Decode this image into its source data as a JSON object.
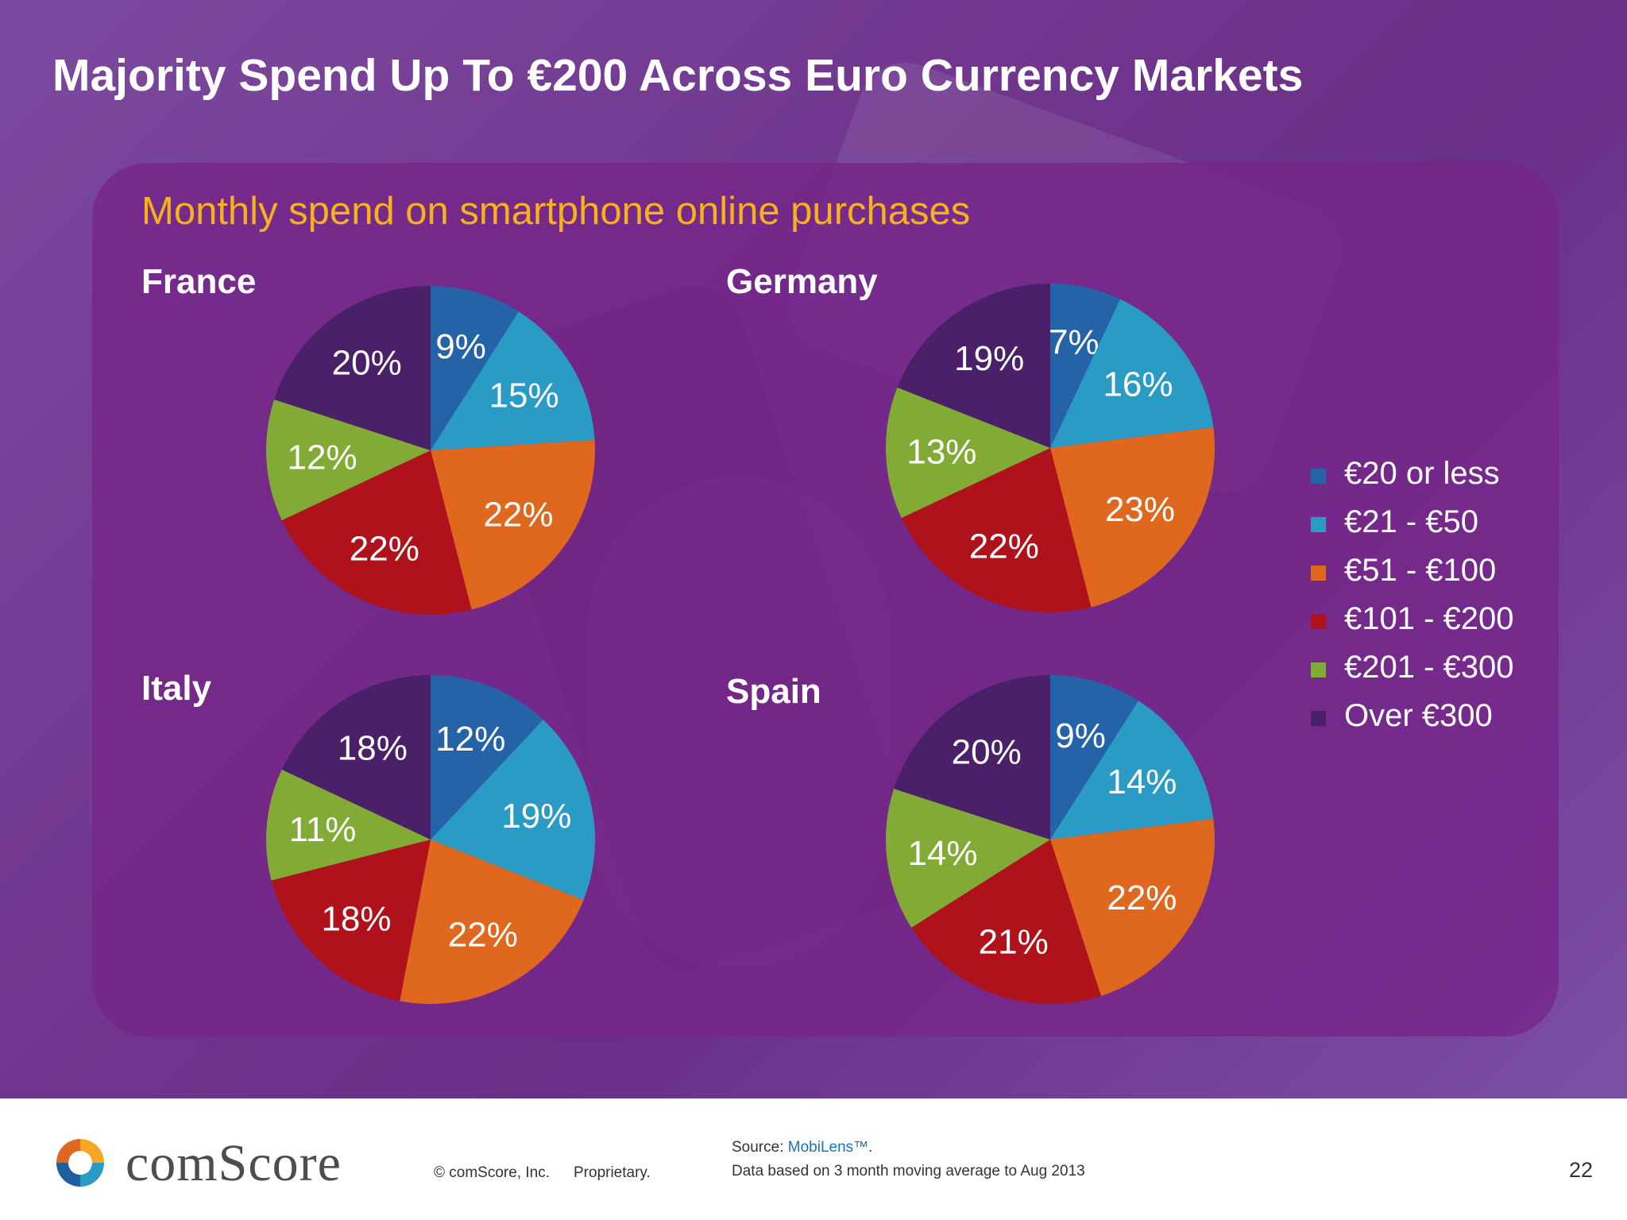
{
  "slide": {
    "title": "Majority Spend Up To €200 Across Euro Currency Markets",
    "subtitle": "Monthly spend on smartphone online purchases",
    "page_number": "22"
  },
  "colors": {
    "€20 or less": "#2563a8",
    "€21 - €50": "#2a9bc4",
    "€51 - €100": "#e0671e",
    "€101 - €200": "#b0121b",
    "€201 - €300": "#82ab35",
    "Over €300": "#4a2169",
    "subtitle": "#f6b21a"
  },
  "legend": [
    {
      "label": "€20 or less",
      "color": "#2563a8"
    },
    {
      "label": "€21 - €50",
      "color": "#2a9bc4"
    },
    {
      "label": "€51 - €100",
      "color": "#e0671e"
    },
    {
      "label": "€101 - €200",
      "color": "#b0121b"
    },
    {
      "label": "€201 - €300",
      "color": "#82ab35"
    },
    {
      "label": "Over €300",
      "color": "#4a2169"
    }
  ],
  "chart_data": [
    {
      "type": "pie",
      "title": "France",
      "categories": [
        "€20 or less",
        "€21 - €50",
        "€51 - €100",
        "€101 - €200",
        "€201 - €300",
        "Over €300"
      ],
      "values": [
        9,
        15,
        22,
        22,
        12,
        20
      ],
      "labels": [
        "9%",
        "15%",
        "22%",
        "22%",
        "12%",
        "20%"
      ]
    },
    {
      "type": "pie",
      "title": "Germany",
      "categories": [
        "€20 or less",
        "€21 - €50",
        "€51 - €100",
        "€101 - €200",
        "€201 - €300",
        "Over €300"
      ],
      "values": [
        7,
        16,
        23,
        22,
        13,
        19
      ],
      "labels": [
        "7%",
        "16%",
        "23%",
        "22%",
        "13%",
        "19%"
      ]
    },
    {
      "type": "pie",
      "title": "Italy",
      "categories": [
        "€20 or less",
        "€21 - €50",
        "€51 - €100",
        "€101 - €200",
        "€201 - €300",
        "Over €300"
      ],
      "values": [
        12,
        19,
        22,
        18,
        11,
        18
      ],
      "labels": [
        "12%",
        "19%",
        "22%",
        "18%",
        "11%",
        "18%"
      ]
    },
    {
      "type": "pie",
      "title": "Spain",
      "categories": [
        "€20 or less",
        "€21 - €50",
        "€51 - €100",
        "€101 - €200",
        "€201 - €300",
        "Over €300"
      ],
      "values": [
        9,
        14,
        22,
        21,
        14,
        20
      ],
      "labels": [
        "9%",
        "14%",
        "22%",
        "21%",
        "14%",
        "20%"
      ]
    }
  ],
  "footer": {
    "brand": "comScore",
    "copyright": "© comScore, Inc.",
    "proprietary": "Proprietary.",
    "source_prefix": "Source: ",
    "source_link": "MobiLens™",
    "source_suffix": ".",
    "data_note": "Data based on 3 month moving average to Aug 2013"
  }
}
